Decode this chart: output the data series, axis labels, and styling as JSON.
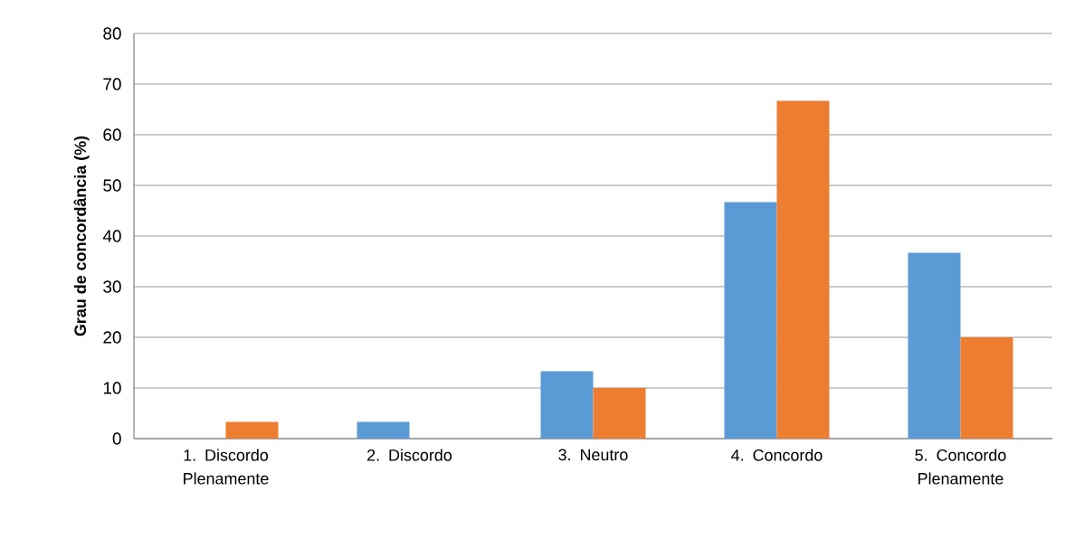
{
  "chart_data": {
    "type": "bar",
    "ylabel": "Grau de concordância (%)",
    "categories": [
      "1. Discordo Plenamente",
      "2. Discordo",
      "3. Neutro",
      "4. Concordo",
      "5. Concordo Plenamente"
    ],
    "series": [
      {
        "color": "#5b9bd5",
        "values": [
          0,
          3.3,
          13.3,
          46.7,
          36.7
        ]
      },
      {
        "color": "#ed7d31",
        "values": [
          3.3,
          0,
          10,
          66.7,
          20
        ]
      }
    ],
    "ylim": [
      0,
      80
    ],
    "yticks": [
      0,
      10,
      20,
      30,
      40,
      50,
      60,
      70,
      80
    ],
    "grid": "y"
  }
}
